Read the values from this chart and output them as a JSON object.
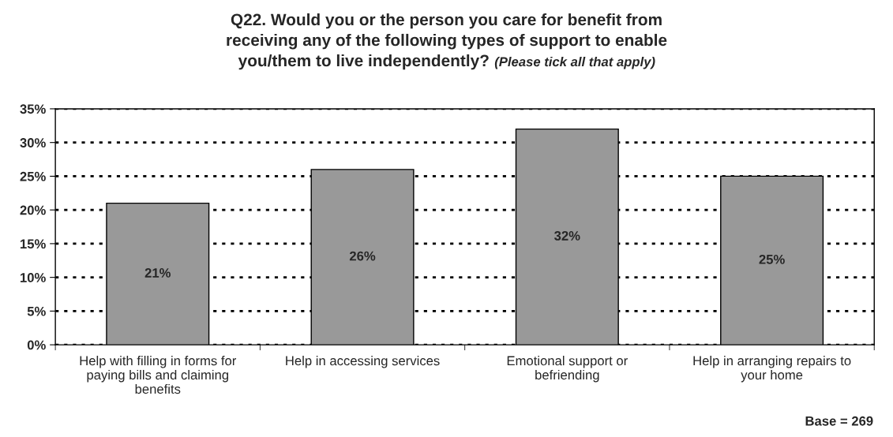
{
  "chart_data": {
    "type": "bar",
    "title": "Q22. Would you or the person you care for benefit from receiving any of the following types of support to enable you/them to live independently?",
    "subtitle": "(Please tick all that apply)",
    "categories": [
      "Help with filling in forms for paying bills and claiming benefits",
      "Help in accessing services",
      "Emotional support or befriending",
      "Help in arranging repairs to your home"
    ],
    "values": [
      21,
      26,
      32,
      25
    ],
    "value_labels": [
      "21%",
      "26%",
      "32%",
      "25%"
    ],
    "color": "#999999",
    "ylim": [
      0,
      35
    ],
    "yticks": [
      {
        "value": 0,
        "label": "0%"
      },
      {
        "value": 5,
        "label": "5%"
      },
      {
        "value": 10,
        "label": "10%"
      },
      {
        "value": 15,
        "label": "15%"
      },
      {
        "value": 20,
        "label": "20%"
      },
      {
        "value": 25,
        "label": "25%"
      },
      {
        "value": 30,
        "label": "30%"
      },
      {
        "value": 35,
        "label": "35%"
      }
    ],
    "grid": "y",
    "annotations": [
      "Base = 269"
    ]
  }
}
